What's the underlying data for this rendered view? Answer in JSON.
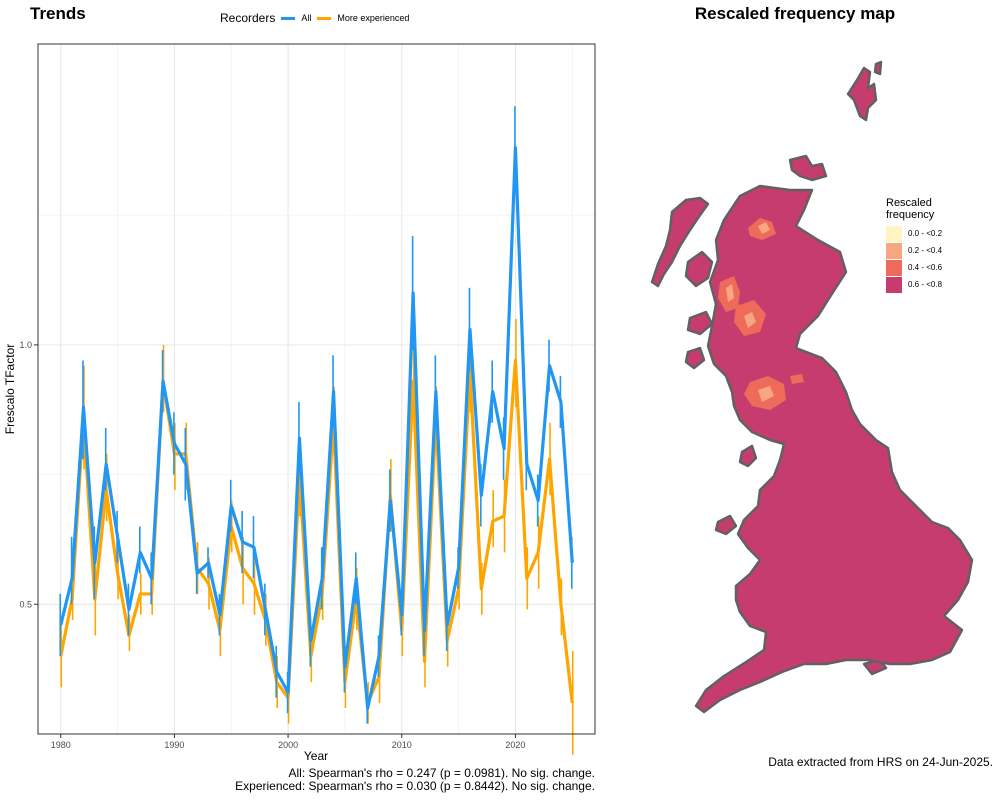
{
  "titles": {
    "trends": "Trends",
    "map": "Rescaled frequency map"
  },
  "chart_data": {
    "type": "line",
    "title": "Trends",
    "xlabel": "Year",
    "ylabel": "Frescalo TFactor",
    "xlim": [
      1978,
      2027
    ],
    "ylim": [
      0.25,
      1.58
    ],
    "x_ticks": [
      1980,
      1990,
      2000,
      2010,
      2020
    ],
    "y_ticks": [
      0.5,
      1.0
    ],
    "y_tick_labels": [
      "0.5",
      "1.0"
    ],
    "grid": true,
    "legend": {
      "title": "Recorders",
      "placement": "top"
    },
    "x": [
      1980,
      1981,
      1982,
      1983,
      1984,
      1985,
      1986,
      1987,
      1988,
      1989,
      1990,
      1991,
      1992,
      1993,
      1994,
      1995,
      1996,
      1997,
      1998,
      1999,
      2000,
      2001,
      2002,
      2003,
      2004,
      2005,
      2006,
      2007,
      2008,
      2009,
      2010,
      2011,
      2012,
      2013,
      2014,
      2015,
      2016,
      2017,
      2018,
      2019,
      2020,
      2021,
      2022,
      2023,
      2024,
      2025
    ],
    "series": [
      {
        "name": "All",
        "color": "#2196f3",
        "values": [
          0.46,
          0.55,
          0.88,
          0.58,
          0.77,
          0.63,
          0.49,
          0.6,
          0.55,
          0.93,
          0.81,
          0.77,
          0.56,
          0.58,
          0.48,
          0.69,
          0.62,
          0.61,
          0.49,
          0.37,
          0.33,
          0.82,
          0.43,
          0.55,
          0.91,
          0.38,
          0.55,
          0.3,
          0.4,
          0.7,
          0.48,
          1.1,
          0.45,
          0.91,
          0.46,
          0.57,
          1.03,
          0.71,
          0.91,
          0.8,
          1.38,
          0.77,
          0.7,
          0.96,
          0.89,
          0.58
        ],
        "lower": [
          0.4,
          0.5,
          0.78,
          0.51,
          0.72,
          0.58,
          0.44,
          0.56,
          0.5,
          0.87,
          0.75,
          0.7,
          0.52,
          0.55,
          0.44,
          0.64,
          0.56,
          0.55,
          0.44,
          0.32,
          0.29,
          0.75,
          0.38,
          0.49,
          0.84,
          0.33,
          0.5,
          0.27,
          0.36,
          0.64,
          0.44,
          0.99,
          0.4,
          0.84,
          0.41,
          0.53,
          0.95,
          0.65,
          0.85,
          0.74,
          1.3,
          0.72,
          0.65,
          0.91,
          0.84,
          0.53
        ],
        "upper": [
          0.52,
          0.63,
          0.97,
          0.65,
          0.84,
          0.68,
          0.54,
          0.65,
          0.6,
          0.99,
          0.87,
          0.84,
          0.6,
          0.61,
          0.52,
          0.74,
          0.68,
          0.67,
          0.54,
          0.42,
          0.37,
          0.89,
          0.48,
          0.61,
          0.98,
          0.43,
          0.6,
          0.33,
          0.44,
          0.76,
          0.52,
          1.21,
          0.5,
          0.98,
          0.51,
          0.61,
          1.11,
          0.77,
          0.97,
          0.86,
          1.46,
          0.82,
          0.75,
          1.01,
          0.94,
          0.63
        ]
      },
      {
        "name": "More experienced",
        "color": "#ffa500",
        "values": [
          0.4,
          0.51,
          0.86,
          0.51,
          0.72,
          0.56,
          0.44,
          0.52,
          0.52,
          0.93,
          0.79,
          0.79,
          0.57,
          0.54,
          0.45,
          0.65,
          0.57,
          0.54,
          0.47,
          0.35,
          0.32,
          0.75,
          0.4,
          0.52,
          0.85,
          0.35,
          0.51,
          0.31,
          0.36,
          0.71,
          0.45,
          0.93,
          0.39,
          0.86,
          0.43,
          0.53,
          0.95,
          0.53,
          0.66,
          0.67,
          0.97,
          0.55,
          0.6,
          0.78,
          0.5,
          0.31
        ],
        "lower": [
          0.34,
          0.47,
          0.76,
          0.44,
          0.66,
          0.51,
          0.41,
          0.48,
          0.48,
          0.87,
          0.72,
          0.72,
          0.52,
          0.49,
          0.4,
          0.6,
          0.5,
          0.48,
          0.42,
          0.3,
          0.27,
          0.67,
          0.35,
          0.47,
          0.79,
          0.3,
          0.45,
          0.27,
          0.31,
          0.64,
          0.4,
          0.86,
          0.34,
          0.8,
          0.38,
          0.49,
          0.87,
          0.48,
          0.61,
          0.6,
          0.88,
          0.49,
          0.53,
          0.71,
          0.44,
          0.21
        ],
        "upper": [
          0.46,
          0.56,
          0.96,
          0.58,
          0.79,
          0.62,
          0.48,
          0.56,
          0.57,
          1.0,
          0.85,
          0.85,
          0.62,
          0.59,
          0.5,
          0.7,
          0.63,
          0.6,
          0.52,
          0.4,
          0.37,
          0.82,
          0.45,
          0.57,
          0.92,
          0.4,
          0.57,
          0.35,
          0.41,
          0.78,
          0.5,
          1.0,
          0.44,
          0.92,
          0.48,
          0.57,
          1.02,
          0.58,
          0.72,
          0.74,
          1.05,
          0.61,
          0.67,
          0.85,
          0.55,
          0.41
        ]
      }
    ]
  },
  "stats": {
    "all": "All: Spearman's rho = 0.247 (p = 0.0981). No sig. change.",
    "experienced": "Experienced: Spearman's rho = 0.030 (p = 0.8442). No sig. change."
  },
  "map_legend": {
    "title_line1": "Rescaled",
    "title_line2": "frequency",
    "items": [
      {
        "label": "0.0 - <0.2",
        "color": "#fdf6c3"
      },
      {
        "label": "0.2 - <0.4",
        "color": "#f7a681"
      },
      {
        "label": "0.4 - <0.6",
        "color": "#ee6a5b"
      },
      {
        "label": "0.6 - <0.8",
        "color": "#c73c6e"
      }
    ]
  },
  "map_colors": {
    "fill": "#c73c6e",
    "outline": "#616161"
  },
  "credit": "Data extracted from HRS on 24-Jun-2025."
}
